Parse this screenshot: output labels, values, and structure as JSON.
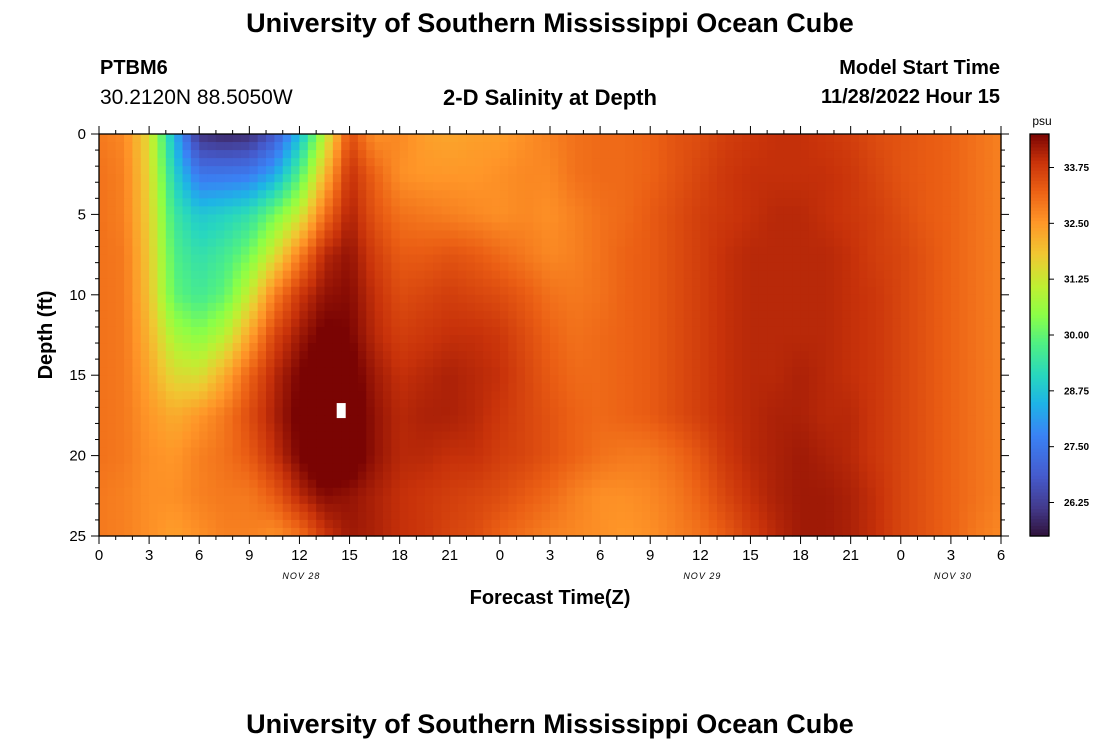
{
  "header": {
    "title_top": "University of Southern Mississippi Ocean Cube",
    "station": "PTBM6",
    "coords": "30.2120N  88.5050W",
    "subtitle": "2-D Salinity at Depth",
    "model_start_label": "Model Start Time",
    "model_start_value": "11/28/2022 Hour 15",
    "title_bottom": "University of Southern Mississippi Ocean Cube"
  },
  "chart_data": {
    "type": "heatmap",
    "title": "2-D Salinity at Depth",
    "xlabel": "Forecast Time(Z)",
    "ylabel": "Depth (ft)",
    "x_range_hours": [
      0,
      54
    ],
    "y_range_ft": [
      0,
      25
    ],
    "y_inverted": true,
    "x_ticks": [
      "0",
      "3",
      "6",
      "9",
      "12",
      "15",
      "18",
      "21",
      "0",
      "3",
      "6",
      "9",
      "12",
      "15",
      "18",
      "21",
      "0",
      "3",
      "6"
    ],
    "y_ticks": [
      "0",
      "5",
      "10",
      "15",
      "20",
      "25"
    ],
    "date_labels": [
      {
        "text": "NOV 28",
        "hour": 12
      },
      {
        "text": "NOV 29",
        "hour": 36
      },
      {
        "text": "NOV 30",
        "hour": 51
      }
    ],
    "colorbar": {
      "unit": "psu",
      "min": 25.5,
      "max": 34.5,
      "ticks": [
        "33.75",
        "32.50",
        "31.25",
        "30.00",
        "28.75",
        "27.50",
        "26.25"
      ]
    },
    "marker": {
      "hour": 14.5,
      "depth_ft": 17.2
    },
    "salinity_grid": {
      "depths_ft": [
        0,
        2.5,
        5,
        7.5,
        10,
        12.5,
        15,
        17.5,
        20,
        22.5,
        25
      ],
      "hours": [
        0,
        1.5,
        3,
        4.5,
        6,
        7.5,
        9,
        10.5,
        12,
        13.5,
        15,
        16.5,
        18,
        19.5,
        21,
        22.5,
        24,
        25.5,
        27,
        28.5,
        30,
        31.5,
        33,
        34.5,
        36,
        37.5,
        39,
        40.5,
        42,
        43.5,
        45,
        46.5,
        48,
        49.5,
        51,
        52.5,
        54
      ],
      "rows": [
        [
          32.9,
          32.7,
          31.5,
          28.5,
          26.0,
          25.8,
          25.9,
          26.8,
          28.6,
          31.0,
          33.5,
          32.6,
          32.7,
          32.4,
          32.3,
          32.4,
          32.4,
          32.6,
          32.8,
          33.0,
          33.1,
          33.1,
          33.2,
          33.4,
          33.5,
          33.7,
          33.8,
          33.9,
          33.9,
          33.8,
          33.7,
          33.5,
          33.4,
          33.3,
          33.2,
          33.0,
          32.8
        ],
        [
          33.0,
          32.8,
          31.6,
          29.0,
          27.5,
          27.5,
          27.6,
          28.3,
          29.8,
          32.0,
          33.9,
          33.2,
          32.6,
          32.5,
          32.5,
          32.5,
          32.6,
          32.7,
          32.7,
          33.0,
          33.1,
          33.1,
          33.2,
          33.4,
          33.6,
          33.8,
          33.9,
          33.9,
          33.9,
          33.9,
          33.8,
          33.6,
          33.4,
          33.3,
          33.2,
          33.0,
          32.8
        ],
        [
          33.0,
          32.8,
          31.7,
          29.5,
          28.8,
          29.0,
          29.3,
          30.2,
          31.2,
          33.0,
          34.1,
          33.4,
          33.0,
          32.9,
          32.8,
          32.7,
          32.6,
          32.7,
          32.6,
          32.8,
          33.0,
          33.1,
          33.3,
          33.5,
          33.7,
          33.8,
          33.9,
          34.0,
          34.0,
          33.9,
          33.8,
          33.7,
          33.5,
          33.3,
          33.2,
          33.0,
          32.8
        ],
        [
          33.0,
          32.9,
          31.8,
          29.8,
          29.3,
          29.6,
          30.2,
          31.4,
          32.8,
          34.0,
          34.3,
          33.7,
          33.3,
          33.3,
          33.4,
          33.3,
          33.1,
          32.9,
          32.7,
          32.8,
          33.0,
          33.2,
          33.3,
          33.5,
          33.7,
          33.9,
          34.0,
          34.0,
          34.0,
          34.0,
          33.9,
          33.7,
          33.6,
          33.4,
          33.2,
          33.0,
          32.8
        ],
        [
          33.0,
          32.9,
          31.9,
          30.0,
          29.6,
          30.0,
          31.2,
          32.8,
          33.8,
          34.3,
          34.4,
          33.9,
          33.5,
          33.6,
          33.7,
          33.6,
          33.5,
          33.3,
          33.0,
          32.9,
          33.0,
          33.2,
          33.3,
          33.5,
          33.7,
          33.9,
          34.0,
          34.0,
          34.0,
          34.0,
          33.9,
          33.8,
          33.6,
          33.4,
          33.2,
          33.0,
          32.8
        ],
        [
          33.0,
          32.9,
          32.1,
          30.8,
          30.4,
          31.0,
          32.3,
          33.6,
          34.2,
          34.6,
          34.5,
          34.0,
          33.7,
          33.8,
          33.9,
          33.9,
          33.8,
          33.5,
          33.2,
          33.0,
          33.1,
          33.2,
          33.3,
          33.5,
          33.7,
          33.9,
          34.0,
          34.0,
          34.0,
          34.0,
          33.9,
          33.8,
          33.6,
          33.4,
          33.2,
          33.0,
          32.8
        ],
        [
          33.0,
          32.9,
          32.3,
          31.5,
          31.4,
          32.2,
          33.2,
          34.0,
          34.5,
          34.9,
          34.7,
          34.2,
          33.9,
          34.0,
          34.1,
          34.0,
          33.9,
          33.6,
          33.3,
          33.1,
          33.1,
          33.2,
          33.3,
          33.5,
          33.7,
          33.9,
          34.0,
          34.0,
          34.1,
          34.0,
          33.9,
          33.8,
          33.6,
          33.4,
          33.2,
          33.0,
          32.8
        ],
        [
          33.0,
          32.9,
          32.5,
          32.2,
          32.5,
          32.9,
          33.5,
          34.1,
          34.6,
          35.0,
          34.8,
          34.3,
          34.0,
          34.1,
          34.1,
          34.0,
          33.8,
          33.6,
          33.4,
          33.2,
          33.1,
          33.2,
          33.3,
          33.5,
          33.7,
          33.9,
          34.0,
          34.1,
          34.1,
          34.0,
          34.0,
          33.8,
          33.6,
          33.4,
          33.2,
          33.0,
          32.8
        ],
        [
          33.0,
          32.9,
          32.6,
          32.5,
          32.8,
          33.0,
          33.3,
          33.9,
          34.5,
          35.0,
          34.8,
          34.3,
          34.0,
          34.0,
          33.9,
          33.9,
          33.7,
          33.6,
          33.4,
          33.2,
          33.0,
          32.9,
          32.9,
          33.1,
          33.4,
          33.8,
          34.0,
          34.1,
          34.2,
          34.1,
          34.0,
          33.8,
          33.6,
          33.4,
          33.2,
          33.0,
          32.8
        ],
        [
          32.9,
          32.8,
          32.6,
          32.6,
          32.8,
          32.9,
          32.9,
          33.3,
          34.0,
          34.4,
          34.3,
          34.1,
          33.9,
          33.8,
          33.7,
          33.6,
          33.5,
          33.3,
          33.1,
          32.8,
          32.6,
          32.6,
          32.7,
          32.9,
          33.2,
          33.6,
          33.9,
          34.1,
          34.2,
          34.2,
          34.1,
          33.9,
          33.6,
          33.4,
          33.2,
          33.0,
          32.8
        ],
        [
          32.9,
          32.8,
          32.6,
          32.4,
          32.6,
          32.8,
          32.8,
          32.6,
          33.0,
          33.8,
          34.2,
          34.1,
          33.9,
          33.8,
          33.6,
          33.5,
          33.2,
          33.0,
          32.8,
          32.7,
          32.6,
          32.5,
          32.6,
          32.8,
          33.0,
          33.3,
          33.7,
          34.0,
          34.2,
          34.2,
          34.1,
          33.9,
          33.6,
          33.4,
          33.2,
          32.9,
          32.7
        ]
      ]
    }
  }
}
